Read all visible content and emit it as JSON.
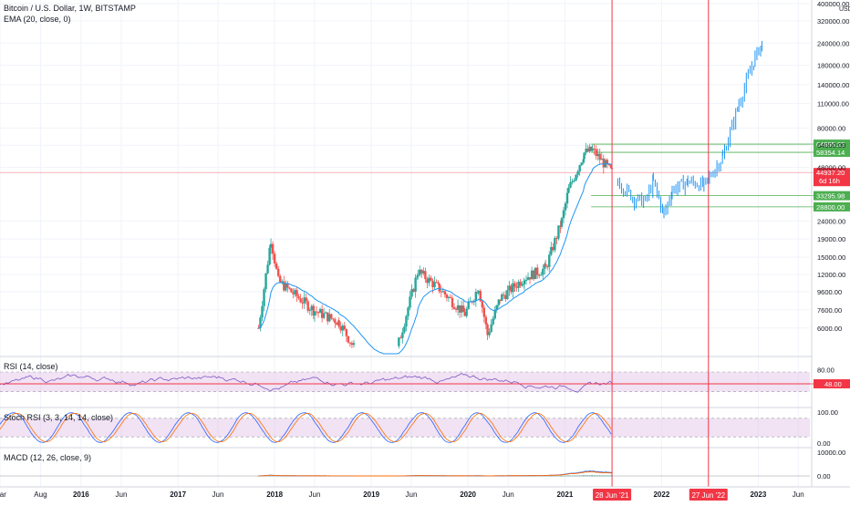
{
  "header": {
    "symbol": "Bitcoin / U.S. Dollar, 1W, BITSTAMP",
    "ema": "EMA (20, close, 0)"
  },
  "currency": "USD",
  "colors": {
    "up": "#26a69a",
    "down": "#ef5350",
    "ema": "#2196f3",
    "rsi": "#7e57c2",
    "rsi_band": "#e1bee7",
    "stoch_k": "#2962ff",
    "stoch_d": "#ff6d00",
    "macd": "#2962ff",
    "signal": "#ff6d00",
    "level_green": "#4caf50",
    "marker_red": "#f23645",
    "price_red": "#f23645"
  },
  "chart_data": [
    {
      "type": "candlestick",
      "title": "Bitcoin / U.S. Dollar, 1W, BITSTAMP",
      "y_scale": "log",
      "y_ticks": [
        "400000.00",
        "320000.00",
        "240000.00",
        "180000.00",
        "140000.00",
        "110000.00",
        "80000.00",
        "64000.00",
        "48000.00",
        "24000.00",
        "19000.00",
        "15000.00",
        "12000.00",
        "9600.00",
        "7600.00",
        "6000.00"
      ],
      "price_labels": [
        {
          "value": "64895.22",
          "color": "#4caf50"
        },
        {
          "value": "58354.14",
          "color": "#4caf50"
        },
        {
          "value": "44937.20",
          "sub": "6d 16h",
          "color": "#f23645"
        },
        {
          "value": "33295.98",
          "color": "#4caf50"
        },
        {
          "value": "28800.00",
          "color": "#4caf50"
        }
      ],
      "x_ticks": [
        "Mar",
        "Aug",
        "2016",
        "Jun",
        "2017",
        "Jun",
        "2018",
        "Jun",
        "2019",
        "Jun",
        "2020",
        "Jun",
        "2021",
        "2022",
        "2023",
        "Jun"
      ],
      "x_markers": [
        "28 Jun '21",
        "27 Jun '22"
      ],
      "anchors": [
        {
          "date": "2017-11-01",
          "close": 6000
        },
        {
          "date": "2017-12-18",
          "close": 19000
        },
        {
          "date": "2018-01-15",
          "close": 11000
        },
        {
          "date": "2018-06-01",
          "close": 7500
        },
        {
          "date": "2018-09-01",
          "close": 6500
        },
        {
          "date": "2018-12-15",
          "close": 3500
        },
        {
          "date": "2019-04-01",
          "close": 4200
        },
        {
          "date": "2019-06-26",
          "close": 12500
        },
        {
          "date": "2019-09-15",
          "close": 10000
        },
        {
          "date": "2019-12-20",
          "close": 7200
        },
        {
          "date": "2020-02-10",
          "close": 10200
        },
        {
          "date": "2020-03-15",
          "close": 5500
        },
        {
          "date": "2020-05-01",
          "close": 8800
        },
        {
          "date": "2020-08-01",
          "close": 11500
        },
        {
          "date": "2020-10-20",
          "close": 13000
        },
        {
          "date": "2020-12-20",
          "close": 24000
        },
        {
          "date": "2021-01-15",
          "close": 36000
        },
        {
          "date": "2021-03-15",
          "close": 58000
        },
        {
          "date": "2021-04-15",
          "close": 60000
        },
        {
          "date": "2021-06-28",
          "close": 44937
        }
      ],
      "projection": [
        {
          "date": "2021-07-20",
          "close": 40000
        },
        {
          "date": "2021-09-20",
          "close": 32000
        },
        {
          "date": "2021-11-01",
          "close": 31000
        },
        {
          "date": "2021-12-01",
          "close": 40000
        },
        {
          "date": "2022-01-10",
          "close": 26000
        },
        {
          "date": "2022-02-10",
          "close": 36000
        },
        {
          "date": "2022-04-10",
          "close": 40000
        },
        {
          "date": "2022-06-10",
          "close": 38000
        },
        {
          "date": "2022-08-20",
          "close": 55000
        },
        {
          "date": "2022-10-20",
          "close": 110000
        },
        {
          "date": "2022-12-20",
          "close": 200000
        },
        {
          "date": "2023-01-15",
          "close": 240000
        }
      ]
    },
    {
      "type": "line",
      "title": "RSI (14, close)",
      "y_ticks": [
        "80.00",
        "48.00"
      ],
      "current_value": "48.00"
    },
    {
      "type": "line",
      "title": "Stoch RSI (3, 3, 14, 14, close)",
      "y_ticks": [
        "100.00",
        "0.00"
      ]
    },
    {
      "type": "bar",
      "title": "MACD (12, 26, close, 9)",
      "y_ticks": [
        "10000.00",
        "0.00"
      ]
    }
  ]
}
